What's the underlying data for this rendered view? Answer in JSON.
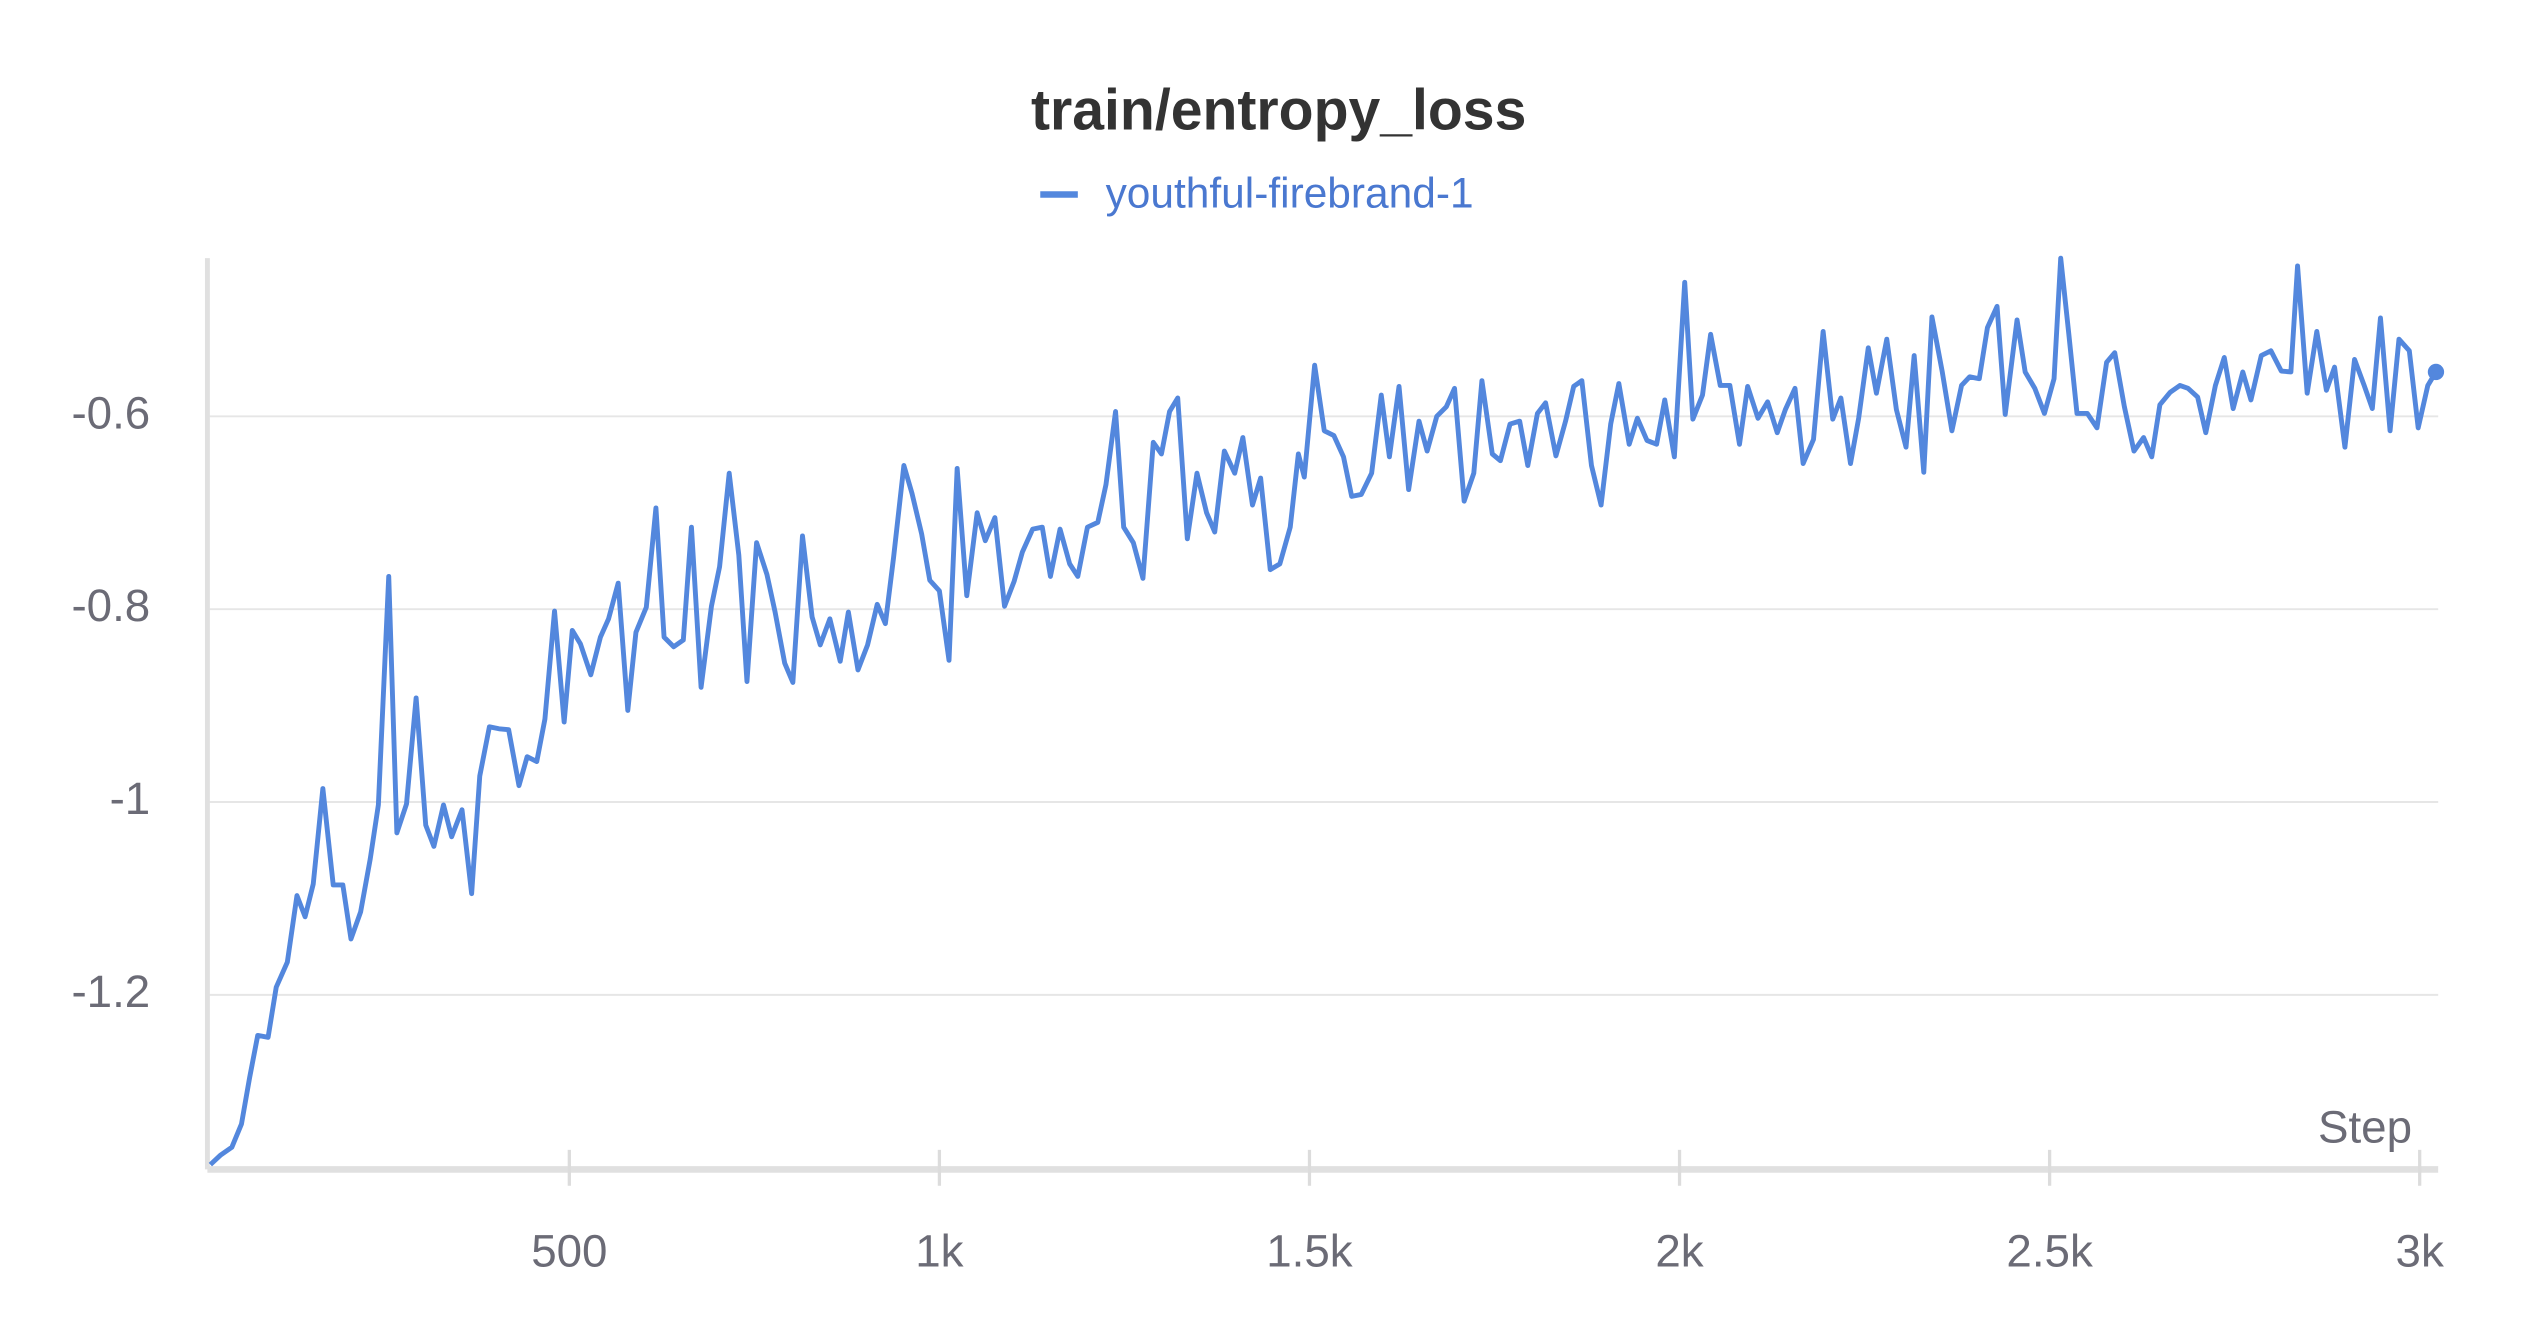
{
  "chart_data": {
    "type": "line",
    "title": "train/entropy_loss",
    "x_label": "Step",
    "x": [
      15,
      29,
      44,
      57,
      68,
      79,
      93,
      104,
      119,
      132,
      143,
      154,
      167,
      181,
      194,
      205,
      218,
      231,
      242,
      256,
      267,
      280,
      293,
      306,
      317,
      330,
      341,
      355,
      368,
      379,
      392,
      405,
      418,
      432,
      443,
      456,
      467,
      480,
      493,
      504,
      515,
      529,
      542,
      553,
      566,
      579,
      590,
      604,
      617,
      628,
      641,
      654,
      665,
      678,
      692,
      703,
      716,
      729,
      740,
      753,
      767,
      778,
      791,
      802,
      815,
      828,
      839,
      852,
      866,
      877,
      890,
      903,
      916,
      927,
      938,
      952,
      963,
      976,
      987,
      1000,
      1013,
      1024,
      1037,
      1051,
      1062,
      1075,
      1088,
      1101,
      1112,
      1126,
      1139,
      1150,
      1163,
      1176,
      1187,
      1200,
      1214,
      1225,
      1238,
      1249,
      1262,
      1275,
      1289,
      1300,
      1311,
      1322,
      1335,
      1348,
      1361,
      1372,
      1385,
      1399,
      1410,
      1423,
      1434,
      1447,
      1460,
      1474,
      1485,
      1493,
      1507,
      1520,
      1533,
      1546,
      1557,
      1570,
      1584,
      1597,
      1608,
      1621,
      1634,
      1648,
      1659,
      1672,
      1685,
      1696,
      1709,
      1722,
      1733,
      1747,
      1758,
      1771,
      1784,
      1795,
      1808,
      1819,
      1833,
      1846,
      1857,
      1868,
      1881,
      1894,
      1907,
      1918,
      1932,
      1943,
      1956,
      1969,
      1980,
      1993,
      2007,
      2018,
      2031,
      2042,
      2055,
      2068,
      2081,
      2092,
      2106,
      2119,
      2132,
      2143,
      2156,
      2167,
      2181,
      2194,
      2207,
      2218,
      2231,
      2242,
      2255,
      2266,
      2280,
      2293,
      2306,
      2317,
      2330,
      2341,
      2355,
      2368,
      2381,
      2392,
      2405,
      2416,
      2429,
      2440,
      2456,
      2467,
      2480,
      2493,
      2506,
      2515,
      2526,
      2537,
      2551,
      2564,
      2577,
      2588,
      2601,
      2614,
      2627,
      2638,
      2649,
      2663,
      2676,
      2687,
      2700,
      2711,
      2724,
      2736,
      2748,
      2761,
      2772,
      2786,
      2799,
      2813,
      2826,
      2835,
      2848,
      2861,
      2874,
      2885,
      2899,
      2912,
      2925,
      2936,
      2947,
      2960,
      2972,
      2986,
      2998,
      3011,
      3022
    ],
    "series": [
      {
        "name": "youthful-firebrand-1",
        "color": "#5387dd",
        "values": [
          -1.376,
          -1.366,
          -1.358,
          -1.334,
          -1.286,
          -1.242,
          -1.244,
          -1.192,
          -1.166,
          -1.097,
          -1.119,
          -1.085,
          -0.986,
          -1.086,
          -1.086,
          -1.142,
          -1.114,
          -1.059,
          -1.003,
          -0.766,
          -1.032,
          -1.002,
          -0.892,
          -1.024,
          -1.046,
          -1.003,
          -1.036,
          -1.008,
          -1.095,
          -0.973,
          -0.922,
          -0.924,
          -0.925,
          -0.983,
          -0.953,
          -0.958,
          -0.914,
          -0.802,
          -0.917,
          -0.822,
          -0.836,
          -0.868,
          -0.829,
          -0.81,
          -0.773,
          -0.905,
          -0.824,
          -0.798,
          -0.695,
          -0.829,
          -0.839,
          -0.832,
          -0.715,
          -0.881,
          -0.797,
          -0.756,
          -0.659,
          -0.744,
          -0.875,
          -0.731,
          -0.764,
          -0.803,
          -0.856,
          -0.876,
          -0.724,
          -0.808,
          -0.837,
          -0.81,
          -0.854,
          -0.803,
          -0.863,
          -0.837,
          -0.795,
          -0.815,
          -0.747,
          -0.651,
          -0.68,
          -0.722,
          -0.77,
          -0.781,
          -0.853,
          -0.654,
          -0.786,
          -0.7,
          -0.729,
          -0.705,
          -0.797,
          -0.771,
          -0.741,
          -0.717,
          -0.715,
          -0.766,
          -0.717,
          -0.753,
          -0.766,
          -0.715,
          -0.71,
          -0.671,
          -0.595,
          -0.715,
          -0.731,
          -0.768,
          -0.627,
          -0.639,
          -0.595,
          -0.581,
          -0.727,
          -0.659,
          -0.7,
          -0.72,
          -0.636,
          -0.659,
          -0.622,
          -0.692,
          -0.664,
          -0.759,
          -0.753,
          -0.715,
          -0.639,
          -0.663,
          -0.547,
          -0.615,
          -0.62,
          -0.642,
          -0.683,
          -0.681,
          -0.659,
          -0.578,
          -0.642,
          -0.569,
          -0.676,
          -0.605,
          -0.636,
          -0.6,
          -0.59,
          -0.571,
          -0.688,
          -0.659,
          -0.563,
          -0.639,
          -0.646,
          -0.608,
          -0.605,
          -0.651,
          -0.597,
          -0.586,
          -0.641,
          -0.605,
          -0.569,
          -0.563,
          -0.651,
          -0.692,
          -0.608,
          -0.566,
          -0.629,
          -0.602,
          -0.625,
          -0.629,
          -0.583,
          -0.642,
          -0.461,
          -0.603,
          -0.578,
          -0.515,
          -0.568,
          -0.568,
          -0.629,
          -0.569,
          -0.602,
          -0.585,
          -0.617,
          -0.593,
          -0.571,
          -0.649,
          -0.624,
          -0.512,
          -0.603,
          -0.581,
          -0.649,
          -0.602,
          -0.529,
          -0.576,
          -0.52,
          -0.593,
          -0.632,
          -0.537,
          -0.658,
          -0.497,
          -0.554,
          -0.615,
          -0.568,
          -0.559,
          -0.561,
          -0.508,
          -0.486,
          -0.598,
          -0.5,
          -0.554,
          -0.571,
          -0.597,
          -0.561,
          -0.436,
          -0.515,
          -0.597,
          -0.597,
          -0.612,
          -0.544,
          -0.534,
          -0.59,
          -0.636,
          -0.622,
          -0.642,
          -0.588,
          -0.575,
          -0.568,
          -0.571,
          -0.58,
          -0.617,
          -0.568,
          -0.539,
          -0.592,
          -0.554,
          -0.583,
          -0.537,
          -0.532,
          -0.553,
          -0.554,
          -0.444,
          -0.576,
          -0.512,
          -0.573,
          -0.549,
          -0.632,
          -0.541,
          -0.568,
          -0.592,
          -0.498,
          -0.615,
          -0.52,
          -0.532,
          -0.612,
          -0.568,
          -0.554
        ]
      }
    ],
    "xlim": [
      11,
      3025
    ],
    "xticks": [
      500,
      {
        "value": 1000,
        "label": "1k"
      },
      {
        "value": 1500,
        "label": "1.5k"
      },
      {
        "value": 2000,
        "label": "2k"
      },
      {
        "value": 2500,
        "label": "2.5k"
      },
      {
        "value": 3000,
        "label": "3k"
      }
    ],
    "ylim": [
      -1.381,
      -0.436
    ],
    "yticks": [
      -1.2,
      -1,
      -0.8,
      -0.6
    ],
    "grid": true
  }
}
